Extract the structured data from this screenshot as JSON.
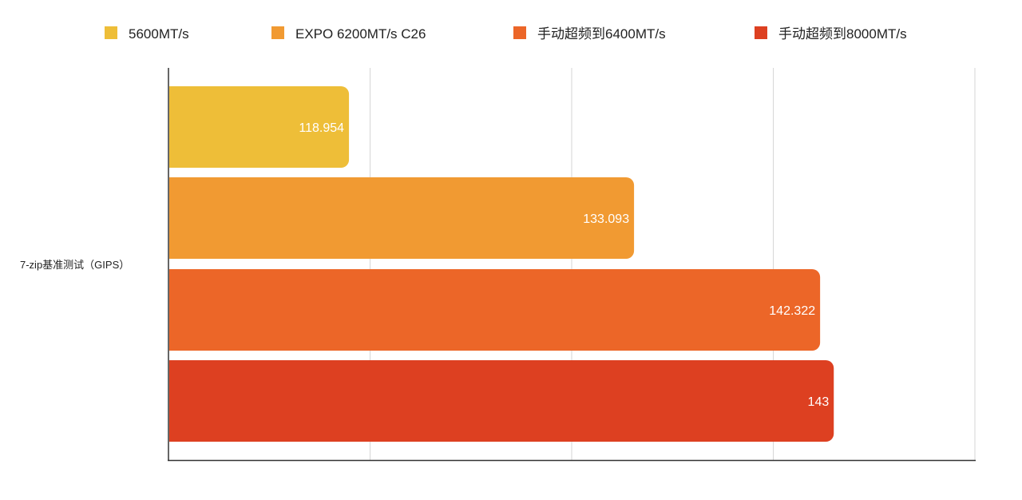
{
  "chart_data": {
    "type": "bar",
    "orientation": "horizontal",
    "title": "",
    "categories": [
      "7-zip基准测试（GIPS）"
    ],
    "series": [
      {
        "name": "5600MT/s",
        "values": [
          118.954
        ],
        "label": "118.954",
        "color": "#EEBE38"
      },
      {
        "name": "EXPO 6200MT/s C26",
        "values": [
          133.093
        ],
        "label": "133.093",
        "color": "#F19A32"
      },
      {
        "name": "手动超频到6400MT/s",
        "values": [
          142.322
        ],
        "label": "142.322",
        "color": "#EC6628"
      },
      {
        "name": "手动超频到8000MT/s",
        "values": [
          143
        ],
        "label": "143",
        "color": "#DD4021"
      }
    ],
    "xlim": [
      110,
      150
    ],
    "xticks": [
      110,
      120,
      130,
      140,
      150
    ],
    "xlabel": "",
    "ylabel": "",
    "grid": true,
    "legend_position": "top"
  }
}
